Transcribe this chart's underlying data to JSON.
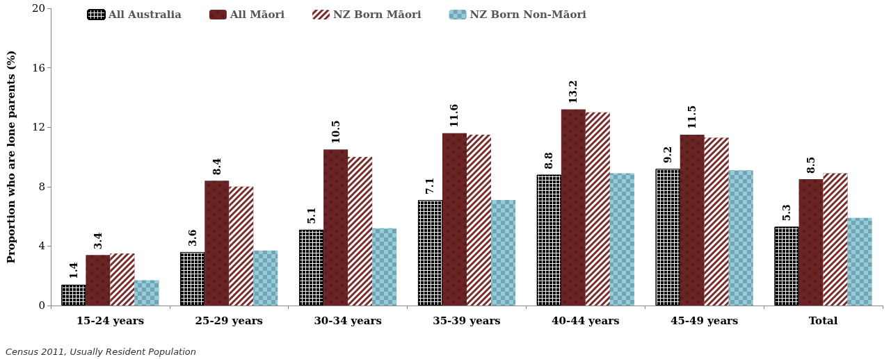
{
  "chart_data": {
    "type": "bar",
    "ylabel": "Proportion who are lone parents (%)",
    "categories": [
      "15-24 years",
      "25-29 years",
      "30-34 years",
      "35-39 years",
      "40-44 years",
      "45-49 years",
      "Total"
    ],
    "series": [
      {
        "name": "All Australia",
        "color": "#ffffff",
        "values": [
          1.4,
          3.6,
          5.1,
          7.1,
          8.8,
          9.2,
          5.3
        ],
        "value_labels": [
          "1.4",
          "3.6",
          "5.1",
          "7.1",
          "8.8",
          "9.2",
          "5.3"
        ]
      },
      {
        "name": "All Māori",
        "color": "#6b2424",
        "values": [
          3.4,
          8.4,
          10.5,
          11.6,
          13.2,
          11.5,
          8.5
        ],
        "value_labels": [
          "3.4",
          "8.4",
          "10.5",
          "11.6",
          "13.2",
          "11.5",
          "8.5"
        ]
      },
      {
        "name": "NZ Born Māori",
        "color": "#7a2c2c",
        "values": [
          3.5,
          8.0,
          10.0,
          11.5,
          13.0,
          11.3,
          8.9
        ]
      },
      {
        "name": "NZ Born Non-Māori",
        "color": "#92cddc",
        "values": [
          1.7,
          3.7,
          5.2,
          7.1,
          8.9,
          9.1,
          5.9
        ]
      }
    ],
    "ylim": [
      0,
      20
    ],
    "yticks": [
      0,
      4,
      8,
      12,
      16,
      20
    ],
    "grid": false,
    "legend": "top left",
    "annotations": [
      "Census 2011, Usually Resident Population"
    ]
  }
}
